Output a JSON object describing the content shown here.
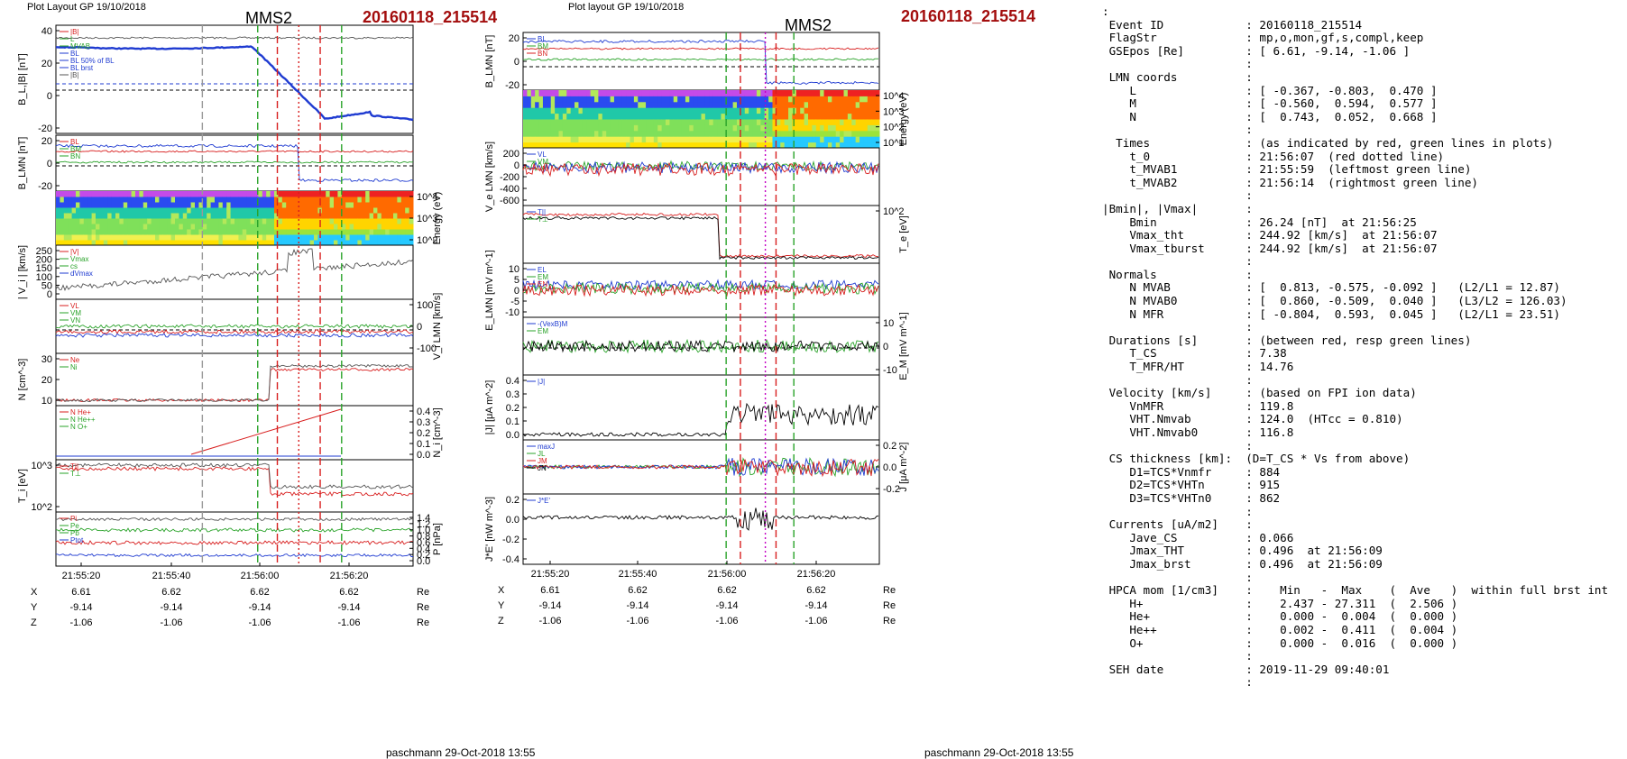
{
  "left_plot": {
    "header": "Plot Layout GP 19/10/2018",
    "spacecraft": "MMS2",
    "event": "20160118_215514",
    "footer": "paschmann 29-Oct-2018 13:55",
    "time_ticks": [
      "21:55:20",
      "21:55:40",
      "21:56:00",
      "21:56:20"
    ],
    "coords": {
      "X": [
        "6.61",
        "6.62",
        "6.62",
        "6.62"
      ],
      "Y": [
        "-9.14",
        "-9.14",
        "-9.14",
        "-9.14"
      ],
      "Z": [
        "-1.06",
        "-1.06",
        "-1.06",
        "-1.06"
      ],
      "unit": "Re"
    },
    "panels": [
      {
        "ylabel": "B_L,|B| [nT]",
        "yticks": [
          "40",
          "20",
          "0",
          "-20"
        ],
        "legend": [
          "|B|",
          "L",
          "MVAB",
          "BL",
          "BL 50% of BL",
          "BL brst",
          "|B|"
        ]
      },
      {
        "ylabel": "B_LMN [nT]",
        "yticks": [
          "20",
          "0",
          "-20"
        ],
        "legend": [
          "BL",
          "BM",
          "BN"
        ]
      },
      {
        "ylabel_right": "Energy (eV)",
        "yticks_right": [
          "10^4",
          "10^3",
          "10^2"
        ]
      },
      {
        "ylabel": "| V_i | [km/s]",
        "yticks": [
          "250",
          "200",
          "150",
          "100",
          "50",
          "0"
        ],
        "legend": [
          "|V|",
          "Vmax",
          "cs",
          "dVmax"
        ]
      },
      {
        "ylabel_right": "V_i LMN [km/s]",
        "yticks_right": [
          "100",
          "0",
          "-100"
        ],
        "legend": [
          "VL",
          "VM",
          "VN"
        ]
      },
      {
        "ylabel": "N [cm^-3]",
        "yticks": [
          "30",
          "20",
          "10"
        ],
        "legend": [
          "Ne",
          "Ni"
        ]
      },
      {
        "ylabel_right": "N_i [cm^-3]",
        "yticks_right": [
          "0.4",
          "0.3",
          "0.2",
          "0.1",
          "0.0"
        ],
        "legend": [
          "N He+",
          "N He++",
          "N O+"
        ]
      },
      {
        "ylabel": "T_i [eV]",
        "yticks": [
          "10^3",
          "10^2"
        ],
        "legend": [
          "T||",
          "T⊥"
        ]
      },
      {
        "ylabel_right": "P [nPa]",
        "yticks_right": [
          "1.4",
          "1.2",
          "1.0",
          "0.8",
          "0.6",
          "0.4",
          "0.2",
          "0.0"
        ],
        "legend": [
          "Pi",
          "Pe",
          "Pb",
          "Ptot"
        ]
      }
    ]
  },
  "right_plot": {
    "header": "Plot layout GP 19/10/2018",
    "spacecraft": "MMS2",
    "event": "20160118_215514",
    "footer": "paschmann 29-Oct-2018 13:55",
    "time_ticks": [
      "21:55:20",
      "21:55:40",
      "21:56:00",
      "21:56:20"
    ],
    "coords": {
      "X": [
        "6.61",
        "6.62",
        "6.62",
        "6.62"
      ],
      "Y": [
        "-9.14",
        "-9.14",
        "-9.14",
        "-9.14"
      ],
      "Z": [
        "-1.06",
        "-1.06",
        "-1.06",
        "-1.06"
      ],
      "unit": "Re"
    },
    "panels": [
      {
        "ylabel": "B_LMN [nT]",
        "yticks": [
          "20",
          "0",
          "-20"
        ],
        "legend": [
          "BL",
          "BM",
          "BN"
        ]
      },
      {
        "ylabel_right": "Energy (eV)",
        "yticks_right": [
          "10^4",
          "10^3",
          "10^2",
          "10^1"
        ]
      },
      {
        "ylabel": "V_e LMN [km/s]",
        "yticks": [
          "200",
          "0",
          "-200",
          "-400",
          "-600"
        ],
        "legend": [
          "VL",
          "VM",
          "VN"
        ]
      },
      {
        "ylabel_right": "T_e [eV]",
        "yticks_right": [
          "10^2"
        ],
        "legend": [
          "T||",
          "T⊥"
        ]
      },
      {
        "ylabel": "E_LMN [mV m^-1]",
        "yticks": [
          "10",
          "5",
          "0",
          "-5",
          "-10"
        ],
        "legend": [
          "EL",
          "EM",
          "EN"
        ]
      },
      {
        "ylabel_right": "E_M [mV m^-1]",
        "yticks_right": [
          "10",
          "0",
          "-10"
        ],
        "legend": [
          "-(VexB)M",
          "EM"
        ]
      },
      {
        "ylabel": "|J| [μA m^-2]",
        "yticks": [
          "0.4",
          "0.3",
          "0.2",
          "0.1",
          "0.0"
        ],
        "legend": [
          "|J|"
        ]
      },
      {
        "ylabel_right": "J [μA m^-2]",
        "yticks_right": [
          "0.2",
          "0.0",
          "-0.2"
        ],
        "legend": [
          "maxJ",
          "JL",
          "JM",
          "JN"
        ]
      },
      {
        "ylabel": "J*E' [nW m^-3]",
        "yticks": [
          "0.2",
          "0.0",
          "-0.2",
          "-0.4"
        ],
        "legend": [
          "J*E'"
        ]
      }
    ]
  },
  "info_lines": [
    ":",
    " Event ID            : 20160118_215514",
    " FlagStr             : mp,o,mon,gf,s,compl,keep",
    " GSEpos [Re]         : [ 6.61, -9.14, -1.06 ]",
    "                     :",
    " LMN coords          :",
    "    L                : [ -0.367, -0.803,  0.470 ]",
    "    M                : [ -0.560,  0.594,  0.577 ]",
    "    N                : [  0.743,  0.052,  0.668 ]",
    "                     :",
    "  Times              : (as indicated by red, green lines in plots)",
    "    t_0              : 21:56:07  (red dotted line)",
    "    t_MVAB1          : 21:55:59  (leftmost green line)",
    "    t_MVAB2          : 21:56:14  (rightmost green line)",
    "                     :",
    "|Bmin|, |Vmax|       :",
    "    Bmin             : 26.24 [nT]  at 21:56:25",
    "    Vmax_tht         : 244.92 [km/s]  at 21:56:07",
    "    Vmax_tburst      : 244.92 [km/s]  at 21:56:07",
    "                     :",
    " Normals             :",
    "    N MVAB           : [  0.813, -0.575, -0.092 ]   (L2/L1 = 12.87)",
    "    N MVAB0          : [  0.860, -0.509,  0.040 ]   (L3/L2 = 126.03)",
    "    N MFR            : [ -0.804,  0.593,  0.045 ]   (L2/L1 = 23.51)",
    "                     :",
    " Durations [s]       : (between red, resp green lines)",
    "    T_CS             : 7.38",
    "    T_MFR/HT         : 14.76",
    "                     :",
    " Velocity [km/s]     : (based on FPI ion data)",
    "    VnMFR            : 119.8",
    "    VHT.Nmvab        : 124.0  (HTcc = 0.810)",
    "    VHT.Nmvab0       : 116.8",
    "                     :",
    " CS thickness [km]:  (D=T_CS * Vs from above)",
    "    D1=TCS*Vnmfr     : 884",
    "    D2=TCS*VHTn      : 915",
    "    D3=TCS*VHTn0     : 862",
    "                     :",
    " Currents [uA/m2]    :",
    "    Jave_CS          : 0.066",
    "    Jmax_THT         : 0.496  at 21:56:09",
    "    Jmax_brst        : 0.496  at 21:56:09",
    "                     :",
    " HPCA mom [1/cm3]    :    Min   -  Max    (  Ave   )  within full brst int",
    "    H+               :    2.437 - 27.311  (  2.506 )",
    "    He+              :    0.000 -  0.004  (  0.000 )",
    "    He++             :    0.002 -  0.411  (  0.004 )",
    "    O+               :    0.000 -  0.016  (  0.000 )",
    "                     :",
    " SEH date            : 2019-11-29 09:40:01",
    "                     :"
  ],
  "colors": {
    "event": "#a30d0d",
    "bl": "#1f3bd1",
    "bm": "#2db82d",
    "bn": "#d81f1f",
    "mvab": "#2aa32a",
    "cs": "#e0221e"
  }
}
